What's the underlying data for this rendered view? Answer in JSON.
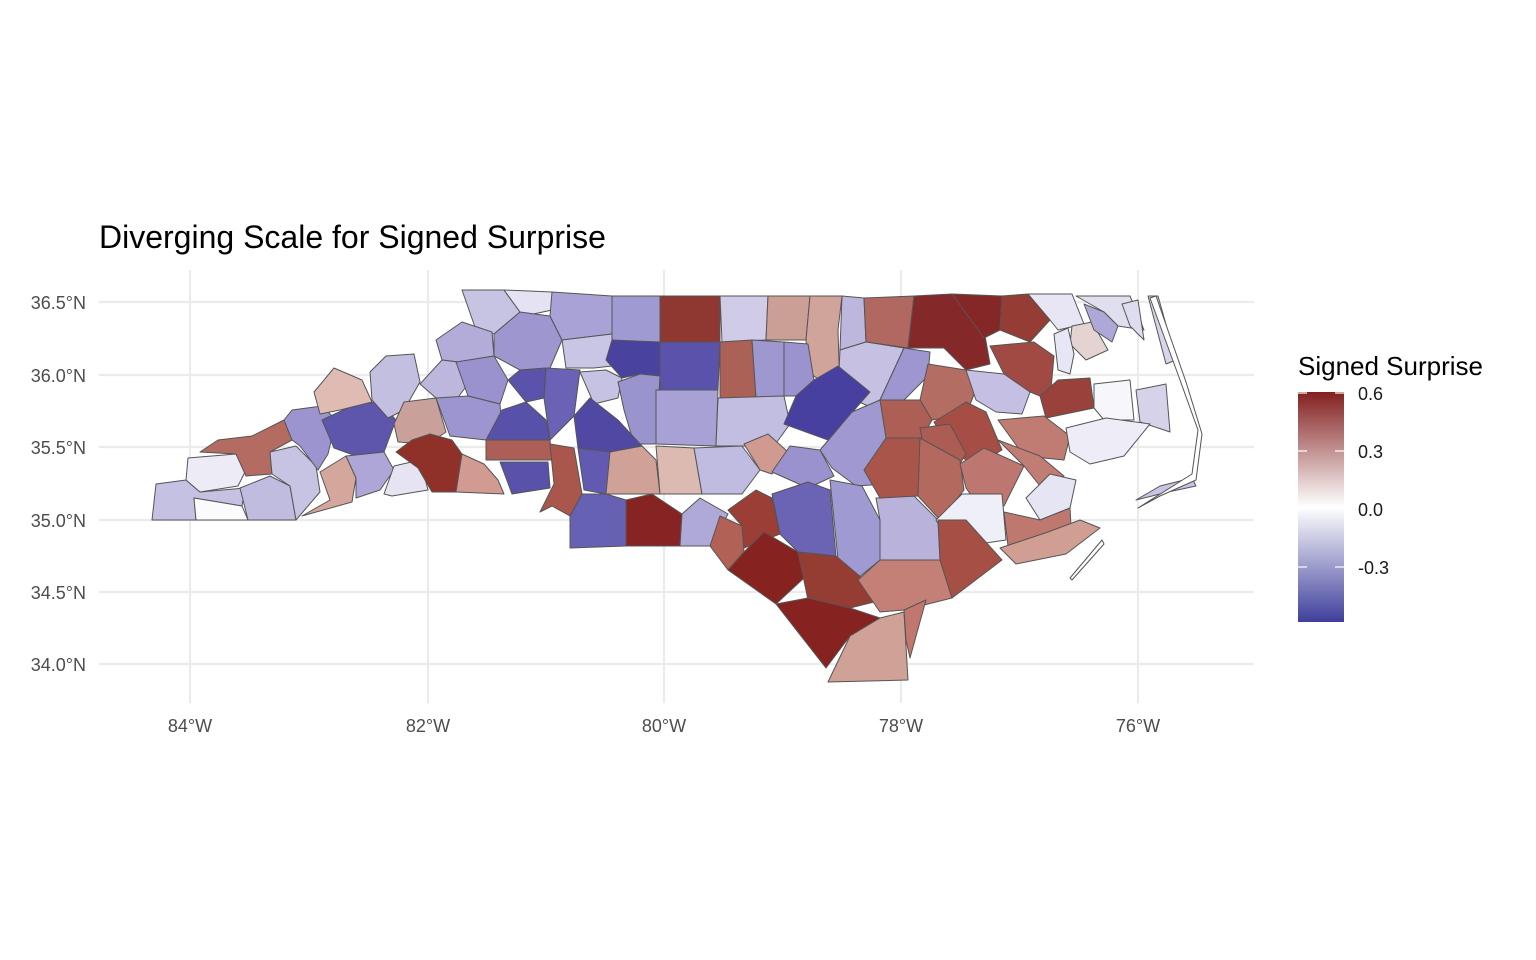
{
  "chart_data": {
    "type": "choropleth",
    "title": "Diverging Scale for Signed Surprise",
    "region": "North Carolina counties",
    "x_ticks": [
      "84°W",
      "82°W",
      "80°W",
      "78°W",
      "76°W"
    ],
    "y_ticks": [
      "36.5°N",
      "36.0°N",
      "35.5°N",
      "35.0°N",
      "34.5°N",
      "34.0°N"
    ],
    "grid": true,
    "legend": {
      "title": "Signed Surprise",
      "position": "right",
      "ticks": [
        "0.6",
        "0.3",
        "0.0",
        "-0.3"
      ],
      "range": [
        -0.55,
        0.62
      ],
      "colors": {
        "low": "#3f3f9c",
        "mid": "#ffffff",
        "high": "#832020"
      }
    }
  }
}
